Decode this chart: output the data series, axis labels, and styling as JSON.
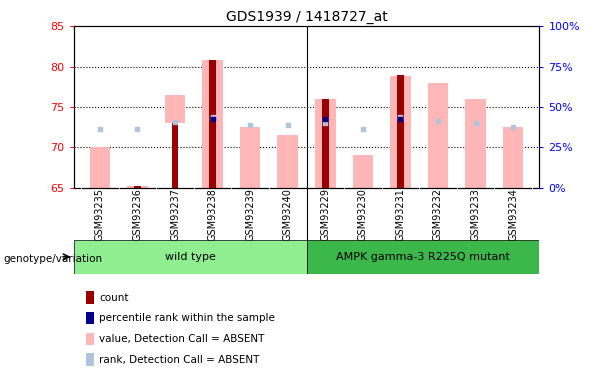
{
  "title": "GDS1939 / 1418727_at",
  "samples": [
    "GSM93235",
    "GSM93236",
    "GSM93237",
    "GSM93238",
    "GSM93239",
    "GSM93240",
    "GSM93229",
    "GSM93230",
    "GSM93231",
    "GSM93232",
    "GSM93233",
    "GSM93234"
  ],
  "value_bottoms": [
    65.0,
    65.0,
    73.0,
    65.0,
    65.0,
    65.0,
    65.0,
    65.0,
    65.0,
    65.0,
    65.0,
    65.0
  ],
  "value_tops": [
    70.0,
    65.2,
    76.5,
    80.8,
    72.5,
    71.5,
    76.0,
    69.0,
    78.8,
    78.0,
    76.0,
    72.5
  ],
  "count_bottoms": [
    65.0,
    65.0,
    65.0,
    65.0,
    65.0,
    65.0,
    65.0,
    65.0,
    65.0,
    65.0,
    65.0,
    65.0
  ],
  "count_tops": [
    65.0,
    65.2,
    73.0,
    80.8,
    65.0,
    65.0,
    76.0,
    65.0,
    79.0,
    65.0,
    65.0,
    65.0
  ],
  "rank_dots_y": [
    72.2,
    72.2,
    73.1,
    73.8,
    72.7,
    72.7,
    73.0,
    72.2,
    73.7,
    73.2,
    73.0,
    72.5
  ],
  "pct_rank_y": [
    null,
    null,
    null,
    73.5,
    null,
    null,
    73.5,
    null,
    73.5,
    null,
    null,
    null
  ],
  "ylim_left": [
    65,
    85
  ],
  "yticks_left": [
    65,
    70,
    75,
    80,
    85
  ],
  "yticks_right": [
    0,
    25,
    50,
    75,
    100
  ],
  "yticklabels_right": [
    "0%",
    "25%",
    "50%",
    "75%",
    "100%"
  ],
  "color_count": "#9B0000",
  "color_pct_rank": "#00008B",
  "color_value": "#FFB6B6",
  "color_rank": "#B0C4DE",
  "color_wt": "#90EE90",
  "color_mut": "#3CB84A",
  "color_gray": "#D3D3D3",
  "n_wt": 6,
  "n_mut": 6,
  "wt_label": "wild type",
  "mut_label": "AMPK gamma-3 R225Q mutant",
  "geno_label": "genotype/variation",
  "legend_labels": [
    "count",
    "percentile rank within the sample",
    "value, Detection Call = ABSENT",
    "rank, Detection Call = ABSENT"
  ],
  "legend_colors": [
    "#9B0000",
    "#00008B",
    "#FFB6B6",
    "#B0C4DE"
  ]
}
